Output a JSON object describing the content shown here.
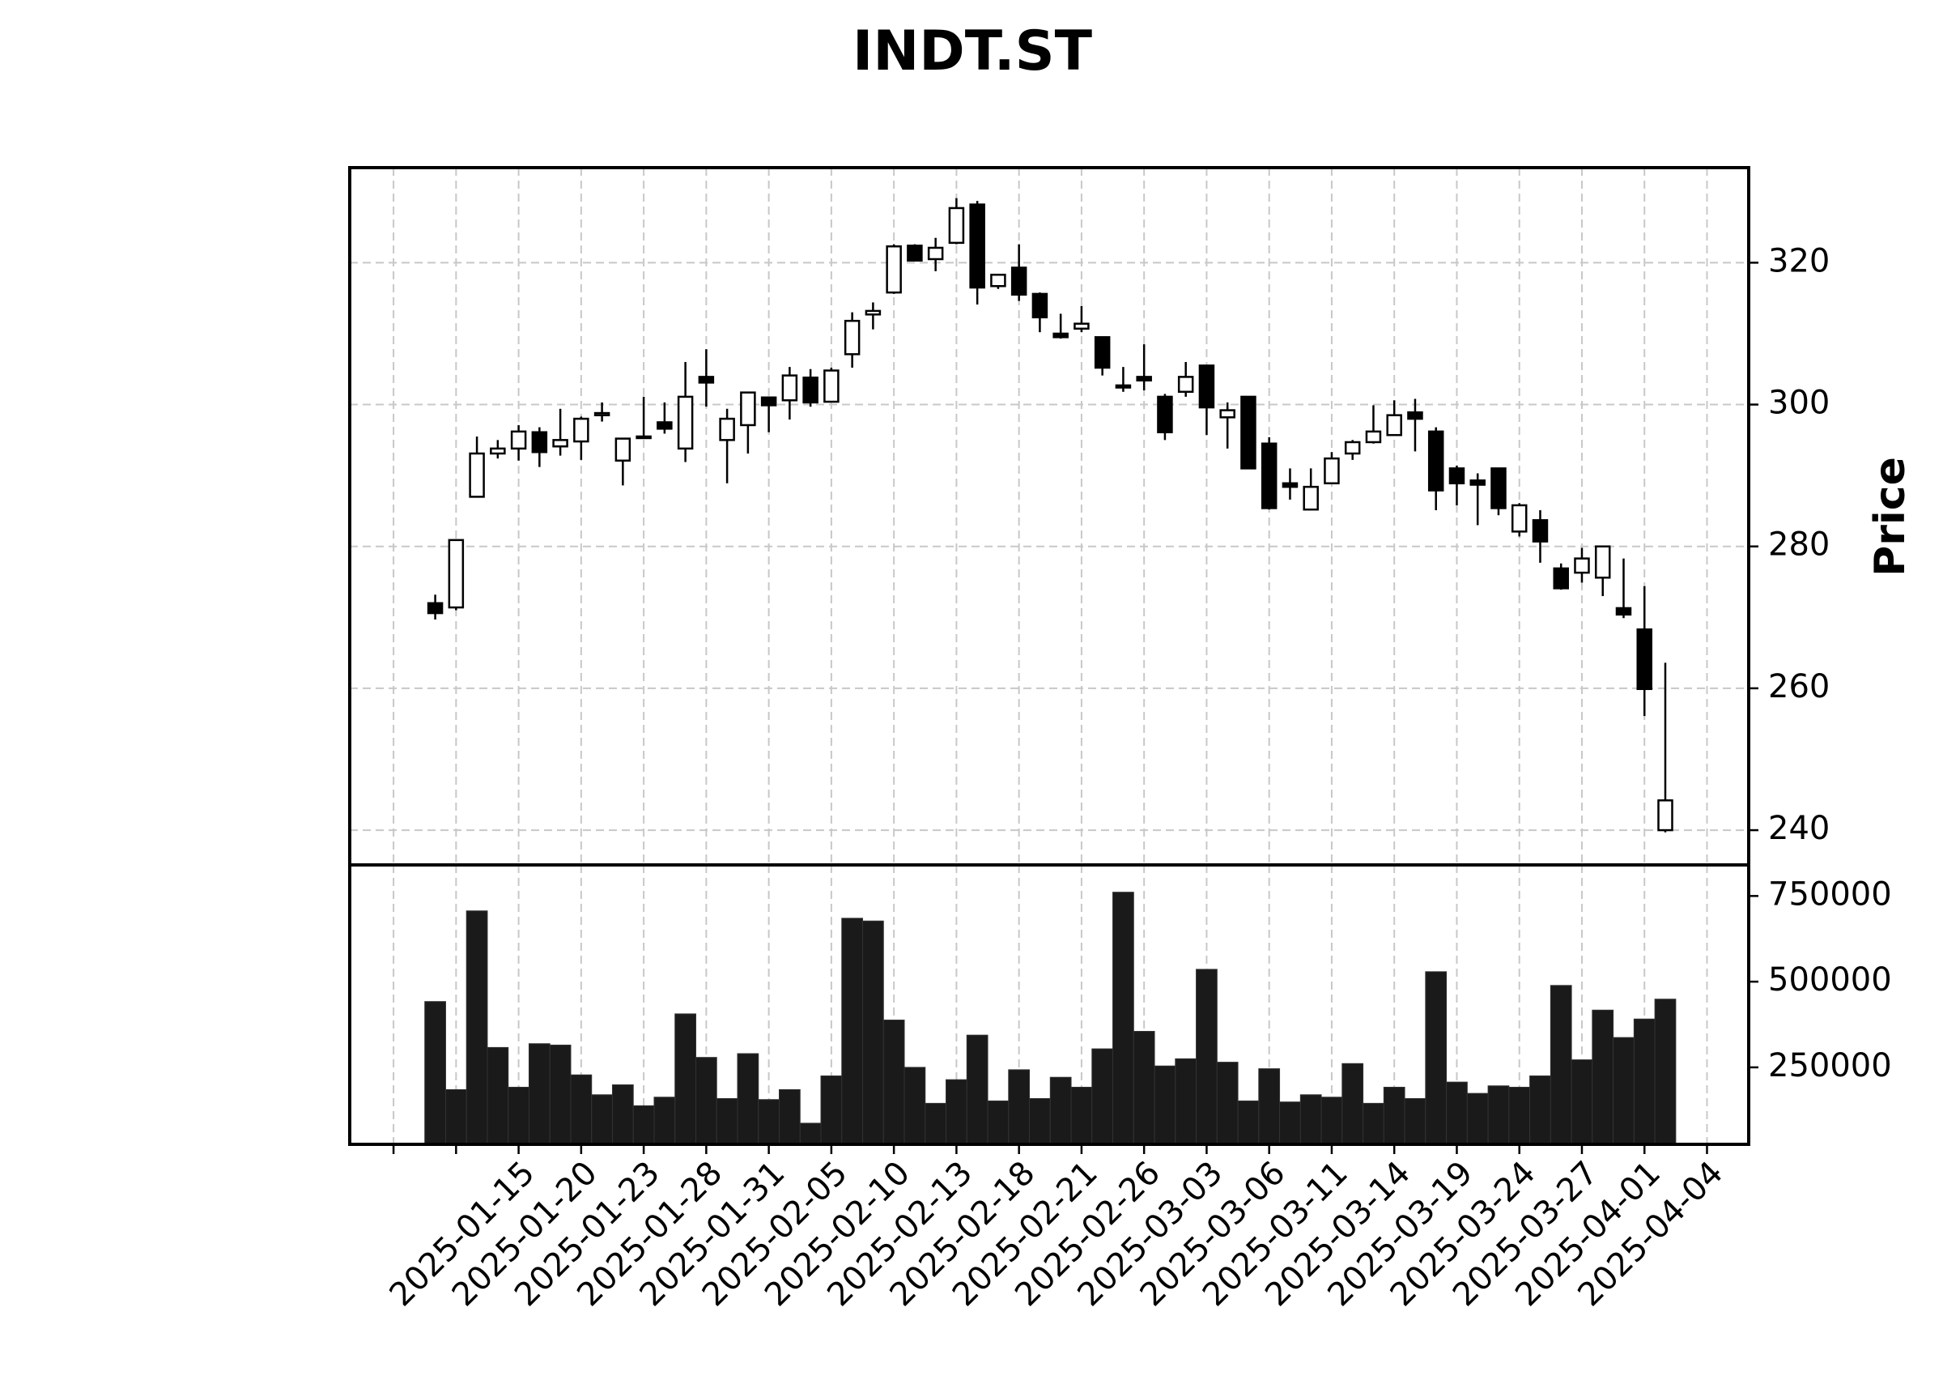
{
  "chart_data": {
    "type": "candlestick",
    "title": "INDT.ST",
    "ylabel": "Price",
    "open": [
      272.0,
      271.4,
      287.0,
      293.1,
      293.8,
      296.1,
      294.1,
      294.8,
      298.5,
      292.1,
      295.4,
      297.5,
      293.8,
      303.9,
      295.0,
      297.1,
      301.0,
      300.6,
      303.8,
      300.4,
      307.1,
      312.7,
      315.8,
      322.4,
      320.5,
      322.8,
      328.2,
      316.7,
      319.3,
      315.6,
      310.0,
      310.7,
      309.5,
      302.7,
      303.9,
      301.1,
      301.8,
      305.5,
      298.2,
      301.1,
      294.5,
      288.9,
      285.2,
      288.9,
      293.1,
      294.7,
      295.7,
      298.9,
      296.2,
      291.0,
      289.3,
      291.0,
      282.1,
      283.7,
      276.9,
      276.3,
      275.6,
      271.3,
      268.3,
      240.0
    ],
    "high": [
      273.2,
      281.0,
      295.5,
      295.0,
      297.1,
      296.8,
      299.4,
      298.3,
      300.3,
      295.3,
      301.1,
      300.3,
      306.0,
      307.8,
      299.4,
      301.7,
      301.1,
      305.3,
      305.0,
      305.2,
      313.0,
      314.4,
      322.6,
      322.6,
      323.5,
      329.1,
      328.7,
      318.4,
      322.6,
      315.8,
      312.8,
      313.9,
      309.5,
      305.3,
      308.5,
      301.5,
      306.0,
      305.5,
      300.3,
      301.1,
      295.4,
      291.0,
      291.0,
      293.3,
      295.0,
      299.9,
      300.6,
      300.8,
      296.8,
      291.4,
      290.3,
      291.0,
      286.1,
      285.1,
      277.6,
      279.8,
      280.0,
      278.3,
      274.4,
      263.6
    ],
    "low": [
      269.7,
      271.0,
      287.0,
      292.4,
      292.1,
      291.2,
      292.8,
      292.2,
      297.6,
      288.6,
      295.3,
      295.9,
      291.9,
      299.7,
      288.9,
      293.1,
      296.1,
      297.9,
      299.7,
      300.3,
      305.2,
      310.6,
      315.6,
      320.2,
      318.8,
      322.6,
      314.1,
      316.3,
      314.6,
      310.2,
      309.3,
      310.2,
      304.1,
      301.8,
      302.0,
      295.0,
      301.1,
      295.7,
      293.8,
      291.0,
      285.2,
      286.6,
      285.2,
      288.9,
      292.2,
      294.5,
      295.7,
      293.4,
      285.1,
      285.8,
      283.0,
      284.4,
      281.4,
      277.7,
      273.9,
      274.9,
      273.0,
      269.9,
      256.1,
      239.7
    ],
    "close": [
      270.6,
      280.9,
      293.1,
      293.8,
      296.2,
      293.3,
      295.0,
      298.0,
      298.8,
      295.2,
      295.5,
      296.6,
      301.1,
      303.1,
      298.0,
      301.7,
      299.9,
      304.1,
      300.3,
      304.8,
      311.8,
      313.2,
      322.3,
      320.3,
      322.1,
      327.7,
      316.5,
      318.3,
      315.5,
      312.3,
      309.5,
      311.4,
      305.2,
      302.4,
      303.4,
      296.1,
      303.9,
      299.6,
      299.2,
      291.0,
      285.4,
      288.4,
      288.4,
      292.4,
      294.7,
      296.2,
      298.5,
      298.0,
      287.9,
      288.9,
      288.7,
      285.4,
      285.8,
      280.7,
      274.1,
      278.3,
      280.0,
      270.4,
      259.9,
      244.2
    ],
    "up_color": "#ffffff",
    "down_color": "#000000",
    "edge_color": "#000000",
    "ylim": [
      235.1,
      333.4
    ],
    "yticks": [
      240,
      260,
      280,
      300,
      320
    ],
    "grid": true,
    "xlim": [
      -4.1,
      63.0
    ],
    "xticks": [
      {
        "value": -2,
        "label": null
      },
      {
        "value": 1,
        "label": null
      },
      {
        "value": 4,
        "label": "2025-01-15"
      },
      {
        "value": 7,
        "label": "2025-01-20"
      },
      {
        "value": 10,
        "label": "2025-01-23"
      },
      {
        "value": 13,
        "label": "2025-01-28"
      },
      {
        "value": 16,
        "label": "2025-01-31"
      },
      {
        "value": 19,
        "label": "2025-02-05"
      },
      {
        "value": 22,
        "label": "2025-02-10"
      },
      {
        "value": 25,
        "label": "2025-02-13"
      },
      {
        "value": 28,
        "label": "2025-02-18"
      },
      {
        "value": 31,
        "label": "2025-02-21"
      },
      {
        "value": 34,
        "label": "2025-02-26"
      },
      {
        "value": 37,
        "label": "2025-03-03"
      },
      {
        "value": 40,
        "label": "2025-03-06"
      },
      {
        "value": 43,
        "label": "2025-03-11"
      },
      {
        "value": 46,
        "label": "2025-03-14"
      },
      {
        "value": 49,
        "label": "2025-03-19"
      },
      {
        "value": 52,
        "label": "2025-03-24"
      },
      {
        "value": 55,
        "label": "2025-03-27"
      },
      {
        "value": 58,
        "label": "2025-04-01"
      },
      {
        "value": 61,
        "label": "2025-04-04"
      }
    ],
    "volume": {
      "color": "#1a1a1a",
      "ylim": [
        25400,
        840600
      ],
      "yticks": [
        250000,
        500000,
        750000
      ],
      "values": [
        442000,
        185000,
        706500,
        308000,
        192000,
        319000,
        315000,
        228000,
        170000,
        199000,
        138000,
        163000,
        406000,
        279000,
        159000,
        290000,
        156000,
        185000,
        87000,
        225000,
        685000,
        677000,
        388000,
        250000,
        145000,
        214000,
        344000,
        152000,
        243000,
        159000,
        221000,
        192000,
        304000,
        761000,
        355000,
        254000,
        275000,
        536000,
        265000,
        152000,
        246000,
        149000,
        170000,
        163000,
        261000,
        145000,
        192000,
        159000,
        529000,
        207000,
        174000,
        196000,
        192000,
        225000,
        489000,
        272000,
        417000,
        337000,
        391000,
        449000
      ]
    }
  }
}
